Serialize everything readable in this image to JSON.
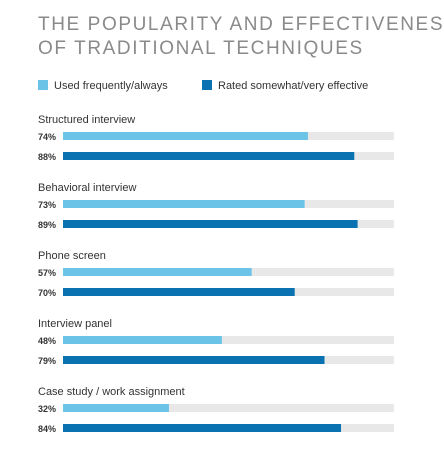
{
  "chart_data": {
    "type": "bar",
    "title_lines": [
      "THE POPULARITY AND EFFECTIVENESS",
      "OF TRADITIONAL TECHNIQUES"
    ],
    "xlim": [
      0,
      100
    ],
    "legend_position": "top-left",
    "series": [
      {
        "name": "Used frequently/always",
        "color": "#6cc3e8"
      },
      {
        "name": "Rated somewhat/very effective",
        "color": "#0a72b0"
      }
    ],
    "track_color": "#e8e8e8",
    "title_color": "#8a8a8a",
    "text_color": "#333333",
    "categories": [
      {
        "label": "Structured interview",
        "values": [
          74,
          88
        ],
        "value_labels": [
          "74%",
          "88%"
        ]
      },
      {
        "label": "Behavioral interview",
        "values": [
          73,
          89
        ],
        "value_labels": [
          "73%",
          "89%"
        ]
      },
      {
        "label": "Phone screen",
        "values": [
          57,
          70
        ],
        "value_labels": [
          "57%",
          "70%"
        ]
      },
      {
        "label": "Interview panel",
        "values": [
          48,
          79
        ],
        "value_labels": [
          "48%",
          "79%"
        ]
      },
      {
        "label": "Case study / work assignment",
        "values": [
          32,
          84
        ],
        "value_labels": [
          "32%",
          "84%"
        ]
      }
    ]
  }
}
